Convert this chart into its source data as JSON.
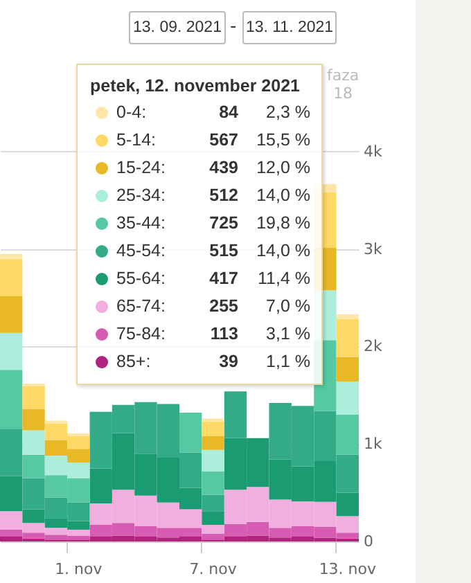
{
  "chart_data": {
    "type": "bar",
    "stacked": true,
    "grid": "y",
    "legend": "top",
    "annotations": [
      "13. 09. 2021",
      "-",
      "13. 11. 2021",
      "petek, 12. november 2021",
      "faza 18",
      "84",
      "2,3 %",
      "567",
      "15,5 %",
      "439",
      "12,0 %",
      "512",
      "14,0 %",
      "725",
      "19,8 %",
      "515",
      "14,0 %",
      "417",
      "11,4 %",
      "255",
      "7,0 %",
      "113",
      "3,1 %",
      "39",
      "1,1 %"
    ],
    "categories": [
      null,
      null,
      null,
      "1. nov",
      null,
      null,
      null,
      null,
      null,
      "7. nov",
      null,
      null,
      null,
      null,
      null,
      "13. nov"
    ],
    "ylim": [
      0,
      4900
    ],
    "yticks": [
      0,
      {
        "value": 1000,
        "label": "1k"
      },
      {
        "value": 2000,
        "label": "2k"
      },
      {
        "value": 3000,
        "label": "3k"
      },
      {
        "value": 4000,
        "label": "4k"
      }
    ],
    "series": [
      {
        "name": "85+:",
        "color": "#b0237f",
        "values": [
          50,
          30,
          20,
          20,
          50,
          60,
          50,
          40,
          50,
          20,
          50,
          60,
          40,
          50,
          39,
          30
        ]
      },
      {
        "name": "75-84:",
        "color": "#d65bb2",
        "values": [
          70,
          60,
          50,
          40,
          120,
          130,
          110,
          100,
          90,
          60,
          130,
          140,
          100,
          110,
          113,
          60
        ]
      },
      {
        "name": "65-74:",
        "color": "#f2aede",
        "values": [
          190,
          100,
          70,
          60,
          220,
          340,
          310,
          260,
          190,
          90,
          350,
          360,
          290,
          250,
          255,
          170
        ]
      },
      {
        "name": "55-64:",
        "color": "#1a9b72",
        "values": [
          360,
          140,
          100,
          90,
          360,
          580,
          430,
          460,
          220,
          140,
          530,
          500,
          410,
          360,
          417,
          240
        ]
      },
      {
        "name": "45-54:",
        "color": "#33ab88",
        "values": [
          480,
          320,
          210,
          190,
          580,
          290,
          530,
          550,
          360,
          170,
          480,
          null,
          580,
          620,
          515,
          390
        ]
      },
      {
        "name": "35-44:",
        "color": "#56c9a3",
        "values": [
          610,
          240,
          230,
          250,
          null,
          null,
          null,
          null,
          410,
          240,
          null,
          null,
          null,
          null,
          725,
          410
        ]
      },
      {
        "name": "25-34:",
        "color": "#aceedb",
        "values": [
          380,
          250,
          200,
          160,
          null,
          null,
          null,
          null,
          null,
          220,
          null,
          null,
          null,
          null,
          512,
          340
        ]
      },
      {
        "name": "15-24:",
        "color": "#e8b826",
        "values": [
          380,
          220,
          160,
          140,
          null,
          null,
          null,
          null,
          null,
          140,
          null,
          null,
          null,
          null,
          439,
          250
        ]
      },
      {
        "name": "5-14:",
        "color": "#fed966",
        "values": [
          380,
          230,
          170,
          130,
          null,
          null,
          null,
          null,
          null,
          150,
          null,
          null,
          null,
          null,
          567,
          390
        ]
      },
      {
        "name": "0-4:",
        "color": "#fde7a8",
        "values": [
          50,
          30,
          30,
          30,
          null,
          null,
          null,
          null,
          null,
          30,
          null,
          null,
          null,
          null,
          84,
          50
        ]
      }
    ]
  }
}
